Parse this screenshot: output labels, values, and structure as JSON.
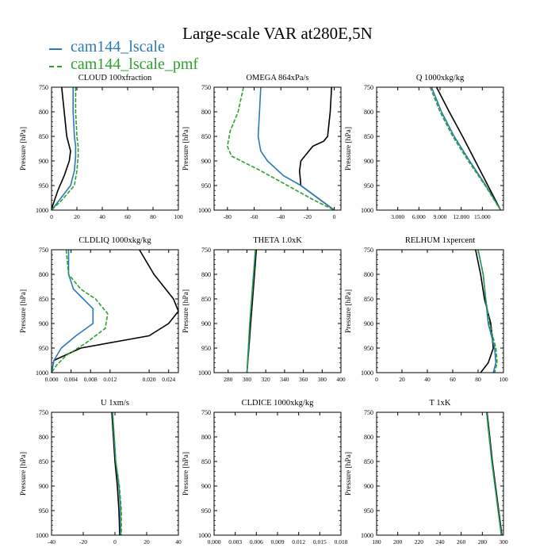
{
  "title": "Large-scale VAR at280E,5N",
  "legend": [
    {
      "label": "cam144_lscale",
      "color": "#2a7ab8",
      "dash": "solid"
    },
    {
      "label": "cam144_lscale_pmf",
      "color": "#2ca02c",
      "dash": "dashed"
    }
  ],
  "reference_series": {
    "color": "#000000",
    "dash": "solid"
  },
  "ylabel": "Pressure [hPa]",
  "chart_data": [
    {
      "type": "line",
      "title": "CLOUD  100xfraction",
      "xlim": [
        0,
        100
      ],
      "xticks": [
        0,
        20,
        40,
        60,
        80,
        100
      ],
      "ylim": [
        750,
        1000
      ],
      "yticks": [
        750,
        800,
        850,
        900,
        950,
        1000
      ],
      "y_inverted": true,
      "series": [
        {
          "pressure": [
            750,
            800,
            850,
            880,
            900,
            930,
            960,
            990,
            1000
          ],
          "values": [
            8,
            10,
            12,
            15,
            14,
            10,
            5,
            1,
            0
          ]
        },
        {
          "name": "cam144_lscale",
          "pressure": [
            750,
            800,
            850,
            870,
            890,
            920,
            950,
            980,
            1000
          ],
          "values": [
            17,
            17,
            18,
            19,
            19,
            18,
            15,
            6,
            0
          ]
        },
        {
          "name": "cam144_lscale_pmf",
          "pressure": [
            750,
            800,
            850,
            870,
            890,
            920,
            950,
            980,
            1000
          ],
          "values": [
            19,
            19,
            20,
            21,
            21,
            20,
            18,
            8,
            0
          ]
        }
      ]
    },
    {
      "type": "line",
      "title": "OMEGA  864xPa/s",
      "xlim": [
        -90,
        5
      ],
      "xticks": [
        -80,
        -60,
        -40,
        -20,
        0
      ],
      "ylim": [
        750,
        1000
      ],
      "yticks": [
        750,
        800,
        850,
        900,
        950,
        1000
      ],
      "y_inverted": true,
      "series": [
        {
          "pressure": [
            750,
            800,
            850,
            860,
            870,
            890,
            900,
            920,
            950,
            980,
            1000
          ],
          "values": [
            -2,
            -3,
            -5,
            -8,
            -16,
            -22,
            -25,
            -26,
            -25,
            -10,
            0
          ]
        },
        {
          "name": "cam144_lscale",
          "pressure": [
            750,
            800,
            850,
            880,
            900,
            930,
            950,
            980,
            1000
          ],
          "values": [
            -55,
            -56,
            -57,
            -55,
            -50,
            -38,
            -25,
            -10,
            0
          ]
        },
        {
          "name": "cam144_lscale_pmf",
          "pressure": [
            750,
            800,
            840,
            870,
            890,
            920,
            950,
            980,
            1000
          ],
          "values": [
            -68,
            -72,
            -78,
            -80,
            -77,
            -55,
            -35,
            -15,
            0
          ]
        }
      ]
    },
    {
      "type": "line",
      "title": "Q  1000xkg/kg",
      "xlim": [
        0,
        18
      ],
      "xticks": [
        3,
        6,
        9,
        12,
        15
      ],
      "xticklabels": [
        "3.000",
        "6.000",
        "9.000",
        "12.000",
        "15.000"
      ],
      "ylim": [
        750,
        1000
      ],
      "yticks": [
        750,
        800,
        850,
        900,
        950,
        1000
      ],
      "y_inverted": true,
      "series": [
        {
          "pressure": [
            750,
            800,
            850,
            900,
            950,
            1000
          ],
          "values": [
            8.5,
            10.3,
            12.2,
            14.0,
            15.8,
            17.6
          ]
        },
        {
          "name": "cam144_lscale",
          "pressure": [
            750,
            800,
            850,
            900,
            950,
            1000
          ],
          "values": [
            7.8,
            9.2,
            11.0,
            13.2,
            15.5,
            17.6
          ]
        },
        {
          "name": "cam144_lscale_pmf",
          "pressure": [
            750,
            800,
            850,
            900,
            950,
            1000
          ],
          "values": [
            7.6,
            9.0,
            10.8,
            13.0,
            15.4,
            17.6
          ]
        }
      ]
    },
    {
      "type": "line",
      "title": "CLDLIQ  1000xkg/kg",
      "xlim": [
        0,
        0.026
      ],
      "xticks": [
        0,
        0.004,
        0.008,
        0.012,
        0.02,
        0.024
      ],
      "xticklabels": [
        "0.000",
        "0.004",
        "0.008",
        "0.012",
        "0.020",
        "0.024"
      ],
      "ylim": [
        750,
        1000
      ],
      "yticks": [
        750,
        800,
        850,
        900,
        950,
        1000
      ],
      "y_inverted": true,
      "series": [
        {
          "pressure": [
            750,
            800,
            850,
            875,
            900,
            925,
            950,
            975,
            1000
          ],
          "values": [
            0.018,
            0.021,
            0.025,
            0.026,
            0.024,
            0.02,
            0.006,
            0.0005,
            0
          ]
        },
        {
          "name": "cam144_lscale",
          "pressure": [
            750,
            800,
            830,
            850,
            870,
            900,
            925,
            950,
            975,
            1000
          ],
          "values": [
            0.0035,
            0.0035,
            0.0045,
            0.0065,
            0.0085,
            0.0085,
            0.005,
            0.002,
            0.0005,
            0
          ]
        },
        {
          "name": "cam144_lscale_pmf",
          "pressure": [
            750,
            800,
            830,
            850,
            880,
            910,
            940,
            965,
            985,
            1000
          ],
          "values": [
            0.003,
            0.0035,
            0.006,
            0.009,
            0.0115,
            0.011,
            0.007,
            0.003,
            0.001,
            0
          ]
        }
      ]
    },
    {
      "type": "line",
      "title": "THETA  1.0xK",
      "xlim": [
        265,
        400
      ],
      "xticks": [
        280,
        300,
        320,
        340,
        360,
        380,
        400
      ],
      "ylim": [
        750,
        1000
      ],
      "yticks": [
        750,
        800,
        850,
        900,
        950,
        1000
      ],
      "y_inverted": true,
      "series": [
        {
          "pressure": [
            750,
            800,
            850,
            900,
            950,
            1000
          ],
          "values": [
            310,
            308,
            306,
            304,
            302,
            300
          ]
        },
        {
          "name": "cam144_lscale",
          "pressure": [
            750,
            800,
            850,
            900,
            950,
            1000
          ],
          "values": [
            309,
            307,
            305,
            303,
            301.5,
            300
          ]
        },
        {
          "name": "cam144_lscale_pmf",
          "pressure": [
            750,
            800,
            850,
            900,
            950,
            1000
          ],
          "values": [
            309,
            307,
            305,
            303,
            301.5,
            300
          ]
        }
      ]
    },
    {
      "type": "line",
      "title": "RELHUM  1xpercent",
      "xlim": [
        0,
        100
      ],
      "xticks": [
        0,
        20,
        40,
        60,
        80,
        100
      ],
      "ylim": [
        750,
        1000
      ],
      "yticks": [
        750,
        800,
        850,
        900,
        950,
        1000
      ],
      "y_inverted": true,
      "series": [
        {
          "pressure": [
            750,
            800,
            850,
            900,
            950,
            980,
            1000
          ],
          "values": [
            78,
            82,
            85,
            90,
            92,
            88,
            82
          ]
        },
        {
          "name": "cam144_lscale",
          "pressure": [
            750,
            800,
            850,
            900,
            950,
            980,
            1000
          ],
          "values": [
            80,
            84,
            86,
            88,
            93,
            94,
            92
          ]
        },
        {
          "name": "cam144_lscale_pmf",
          "pressure": [
            750,
            800,
            850,
            900,
            950,
            980,
            1000
          ],
          "values": [
            80,
            84,
            86,
            89,
            94,
            95,
            93
          ]
        }
      ]
    },
    {
      "type": "line",
      "title": "U  1xm/s",
      "xlim": [
        -40,
        40
      ],
      "xticks": [
        -40,
        -20,
        0,
        20,
        40
      ],
      "ylim": [
        750,
        1000
      ],
      "yticks": [
        750,
        800,
        850,
        900,
        950,
        1000
      ],
      "y_inverted": true,
      "series": [
        {
          "pressure": [
            750,
            800,
            850,
            900,
            950,
            1000
          ],
          "values": [
            -2,
            -1,
            0,
            1.5,
            2.5,
            3
          ]
        },
        {
          "name": "cam144_lscale",
          "pressure": [
            750,
            800,
            850,
            900,
            950,
            1000
          ],
          "values": [
            -1.5,
            -0.5,
            0.5,
            2.5,
            3.5,
            3.5
          ]
        },
        {
          "name": "cam144_lscale_pmf",
          "pressure": [
            750,
            800,
            850,
            900,
            950,
            1000
          ],
          "values": [
            -1.5,
            -0.5,
            0.5,
            2.8,
            4,
            4
          ]
        }
      ]
    },
    {
      "type": "line",
      "title": "CLDICE  1000xkg/kg",
      "xlim": [
        0,
        0.018
      ],
      "xticks": [
        0,
        0.003,
        0.006,
        0.009,
        0.012,
        0.015,
        0.018
      ],
      "xticklabels": [
        "0.000",
        "0.003",
        "0.006",
        "0.009",
        "0.012",
        "0.015",
        "0.018"
      ],
      "ylim": [
        750,
        1000
      ],
      "yticks": [
        750,
        800,
        850,
        900,
        950,
        1000
      ],
      "y_inverted": true,
      "series": []
    },
    {
      "type": "line",
      "title": "T  1xK",
      "xlim": [
        180,
        300
      ],
      "xticks": [
        180,
        200,
        220,
        240,
        260,
        280,
        300
      ],
      "ylim": [
        750,
        1000
      ],
      "yticks": [
        750,
        800,
        850,
        900,
        950,
        1000
      ],
      "y_inverted": true,
      "series": [
        {
          "pressure": [
            750,
            800,
            850,
            900,
            950,
            1000
          ],
          "values": [
            284.5,
            287,
            289.5,
            292.5,
            295.5,
            298.5
          ]
        },
        {
          "name": "cam144_lscale",
          "pressure": [
            750,
            800,
            850,
            900,
            950,
            1000
          ],
          "values": [
            284,
            286.5,
            289,
            292,
            295,
            298
          ]
        },
        {
          "name": "cam144_lscale_pmf",
          "pressure": [
            750,
            800,
            850,
            900,
            950,
            1000
          ],
          "values": [
            284,
            286.5,
            289,
            292,
            295,
            298
          ]
        }
      ]
    }
  ]
}
